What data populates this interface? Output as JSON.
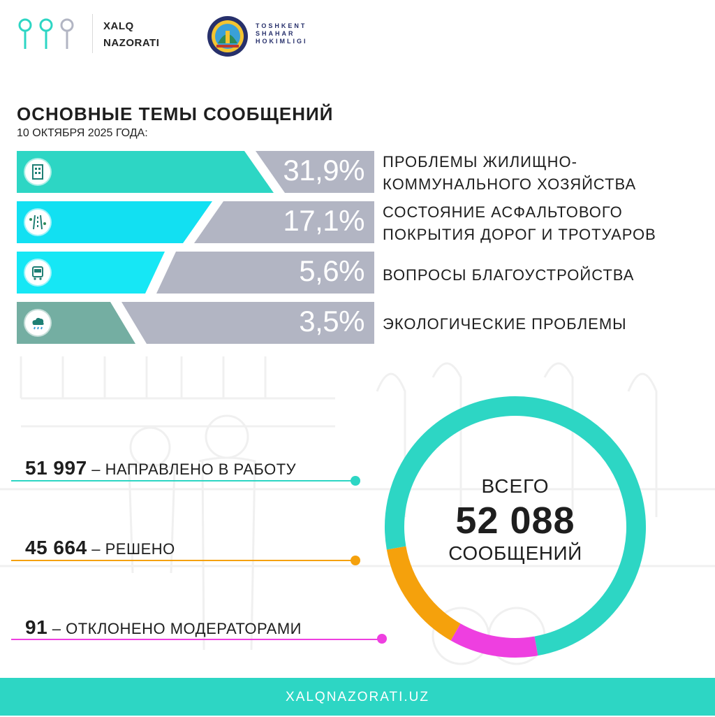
{
  "header": {
    "brand_line1": "XALQ",
    "brand_line2": "NAZORATI",
    "city_line1": "TOSHKENT",
    "city_line2": "SHAHAR",
    "city_line3": "HOKIMLIGI",
    "logo_icon": "pin-dots-logo",
    "emblem_icon": "tashkent-emblem"
  },
  "title": "ОСНОВНЫЕ ТЕМЫ СООБЩЕНИЙ",
  "subtitle": "10 ОКТЯБРЯ 2025 ГОДА:",
  "topics": [
    {
      "percent": "31,9%",
      "share": 0.319,
      "label_line1": "ПРОБЛЕМЫ ЖИЛИЩНО-",
      "label_line2": "КОММУНАЛЬНОГО ХОЗЯЙСТВА",
      "icon": "apartment-building-icon",
      "color": "#2dd6c4"
    },
    {
      "percent": "17,1%",
      "share": 0.171,
      "label_line1": "СОСТОЯНИЕ АСФАЛЬТОВОГО",
      "label_line2": "ПОКРЫТИЯ ДОРОГ И ТРОТУАРОВ",
      "icon": "road-icon",
      "color": "#12e0f2"
    },
    {
      "percent": "5,6%",
      "share": 0.056,
      "label_line1": "ВОПРОСЫ БЛАГОУСТРОЙСТВА",
      "label_line2": "",
      "icon": "bus-stop-icon",
      "color": "#16e7f5"
    },
    {
      "percent": "3,5%",
      "share": 0.035,
      "label_line1": "ЭКОЛОГИЧЕСКИЕ ПРОБЛЕМЫ",
      "label_line2": "",
      "icon": "rain-cloud-icon",
      "color": "#74aea2"
    }
  ],
  "stats": [
    {
      "value": "51 997",
      "label": "– НАПРАВЛЕНО В РАБОТУ",
      "color": "#2dd6c4"
    },
    {
      "value": "45 664",
      "label": "– РЕШЕНО",
      "color": "#f5a10c"
    },
    {
      "value": "91",
      "label": "– ОТКЛОНЕНО МОДЕРАТОРАМИ",
      "color": "#ee3fe0"
    }
  ],
  "total": {
    "line1": "ВСЕГО",
    "value": "52 088",
    "line2": "СООБЩЕНИЙ"
  },
  "donut_segments": [
    {
      "name": "teal",
      "color": "#2dd6c4",
      "fraction": 0.75
    },
    {
      "name": "orange",
      "color": "#f5a10c",
      "fraction": 0.14
    },
    {
      "name": "magenta",
      "color": "#ee3fe0",
      "fraction": 0.11
    }
  ],
  "footer": {
    "url": "XALQNAZORATI.UZ"
  }
}
